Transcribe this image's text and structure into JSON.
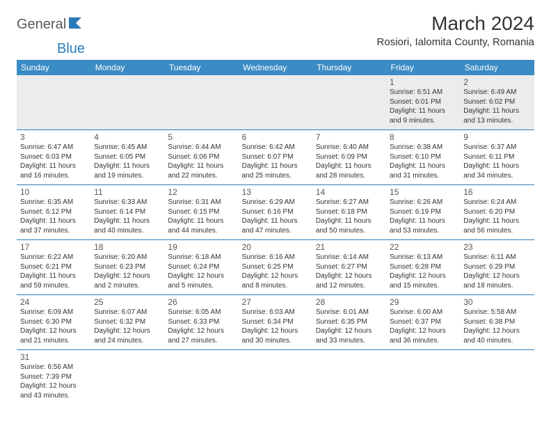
{
  "brand": {
    "part1": "General",
    "part2": "Blue"
  },
  "title": "March 2024",
  "location": "Rosiori, Ialomita County, Romania",
  "colors": {
    "header_bg": "#3b8bc4",
    "header_text": "#ffffff",
    "border": "#2b7bb9",
    "shade": "#ececec",
    "text": "#333333",
    "logo_gray": "#5a5a5a",
    "logo_blue": "#2b7bb9"
  },
  "daynames": [
    "Sunday",
    "Monday",
    "Tuesday",
    "Wednesday",
    "Thursday",
    "Friday",
    "Saturday"
  ],
  "weeks": [
    [
      null,
      null,
      null,
      null,
      null,
      {
        "n": "1",
        "sunrise": "6:51 AM",
        "sunset": "6:01 PM",
        "daylight": "11 hours and 9 minutes."
      },
      {
        "n": "2",
        "sunrise": "6:49 AM",
        "sunset": "6:02 PM",
        "daylight": "11 hours and 13 minutes."
      }
    ],
    [
      {
        "n": "3",
        "sunrise": "6:47 AM",
        "sunset": "6:03 PM",
        "daylight": "11 hours and 16 minutes."
      },
      {
        "n": "4",
        "sunrise": "6:45 AM",
        "sunset": "6:05 PM",
        "daylight": "11 hours and 19 minutes."
      },
      {
        "n": "5",
        "sunrise": "6:44 AM",
        "sunset": "6:06 PM",
        "daylight": "11 hours and 22 minutes."
      },
      {
        "n": "6",
        "sunrise": "6:42 AM",
        "sunset": "6:07 PM",
        "daylight": "11 hours and 25 minutes."
      },
      {
        "n": "7",
        "sunrise": "6:40 AM",
        "sunset": "6:09 PM",
        "daylight": "11 hours and 28 minutes."
      },
      {
        "n": "8",
        "sunrise": "6:38 AM",
        "sunset": "6:10 PM",
        "daylight": "11 hours and 31 minutes."
      },
      {
        "n": "9",
        "sunrise": "6:37 AM",
        "sunset": "6:11 PM",
        "daylight": "11 hours and 34 minutes."
      }
    ],
    [
      {
        "n": "10",
        "sunrise": "6:35 AM",
        "sunset": "6:12 PM",
        "daylight": "11 hours and 37 minutes."
      },
      {
        "n": "11",
        "sunrise": "6:33 AM",
        "sunset": "6:14 PM",
        "daylight": "11 hours and 40 minutes."
      },
      {
        "n": "12",
        "sunrise": "6:31 AM",
        "sunset": "6:15 PM",
        "daylight": "11 hours and 44 minutes."
      },
      {
        "n": "13",
        "sunrise": "6:29 AM",
        "sunset": "6:16 PM",
        "daylight": "11 hours and 47 minutes."
      },
      {
        "n": "14",
        "sunrise": "6:27 AM",
        "sunset": "6:18 PM",
        "daylight": "11 hours and 50 minutes."
      },
      {
        "n": "15",
        "sunrise": "6:26 AM",
        "sunset": "6:19 PM",
        "daylight": "11 hours and 53 minutes."
      },
      {
        "n": "16",
        "sunrise": "6:24 AM",
        "sunset": "6:20 PM",
        "daylight": "11 hours and 56 minutes."
      }
    ],
    [
      {
        "n": "17",
        "sunrise": "6:22 AM",
        "sunset": "6:21 PM",
        "daylight": "11 hours and 59 minutes."
      },
      {
        "n": "18",
        "sunrise": "6:20 AM",
        "sunset": "6:23 PM",
        "daylight": "12 hours and 2 minutes."
      },
      {
        "n": "19",
        "sunrise": "6:18 AM",
        "sunset": "6:24 PM",
        "daylight": "12 hours and 5 minutes."
      },
      {
        "n": "20",
        "sunrise": "6:16 AM",
        "sunset": "6:25 PM",
        "daylight": "12 hours and 8 minutes."
      },
      {
        "n": "21",
        "sunrise": "6:14 AM",
        "sunset": "6:27 PM",
        "daylight": "12 hours and 12 minutes."
      },
      {
        "n": "22",
        "sunrise": "6:13 AM",
        "sunset": "6:28 PM",
        "daylight": "12 hours and 15 minutes."
      },
      {
        "n": "23",
        "sunrise": "6:11 AM",
        "sunset": "6:29 PM",
        "daylight": "12 hours and 18 minutes."
      }
    ],
    [
      {
        "n": "24",
        "sunrise": "6:09 AM",
        "sunset": "6:30 PM",
        "daylight": "12 hours and 21 minutes."
      },
      {
        "n": "25",
        "sunrise": "6:07 AM",
        "sunset": "6:32 PM",
        "daylight": "12 hours and 24 minutes."
      },
      {
        "n": "26",
        "sunrise": "6:05 AM",
        "sunset": "6:33 PM",
        "daylight": "12 hours and 27 minutes."
      },
      {
        "n": "27",
        "sunrise": "6:03 AM",
        "sunset": "6:34 PM",
        "daylight": "12 hours and 30 minutes."
      },
      {
        "n": "28",
        "sunrise": "6:01 AM",
        "sunset": "6:35 PM",
        "daylight": "12 hours and 33 minutes."
      },
      {
        "n": "29",
        "sunrise": "6:00 AM",
        "sunset": "6:37 PM",
        "daylight": "12 hours and 36 minutes."
      },
      {
        "n": "30",
        "sunrise": "5:58 AM",
        "sunset": "6:38 PM",
        "daylight": "12 hours and 40 minutes."
      }
    ],
    [
      {
        "n": "31",
        "sunrise": "6:56 AM",
        "sunset": "7:39 PM",
        "daylight": "12 hours and 43 minutes."
      },
      null,
      null,
      null,
      null,
      null,
      null
    ]
  ],
  "labels": {
    "sunrise": "Sunrise:",
    "sunset": "Sunset:",
    "daylight": "Daylight:"
  }
}
